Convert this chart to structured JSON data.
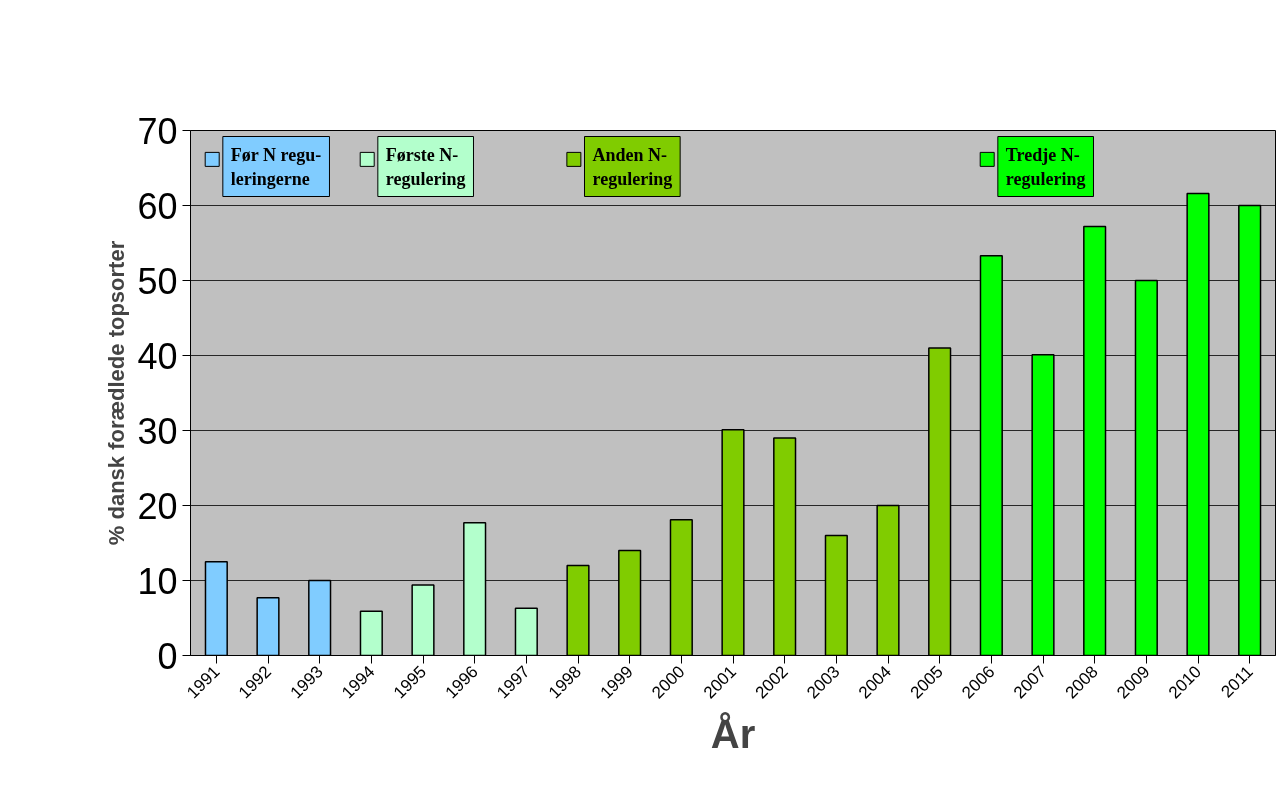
{
  "chart_data": {
    "type": "bar",
    "xlabel": "År",
    "ylabel": "% dansk forædlede topsorter",
    "categories": [
      "1991",
      "1992",
      "1993",
      "1994",
      "1995",
      "1996",
      "1997",
      "1998",
      "1999",
      "2000",
      "2001",
      "2002",
      "2003",
      "2004",
      "2005",
      "2006",
      "2007",
      "2008",
      "2009",
      "2010",
      "2011"
    ],
    "series": [
      {
        "name": "Før N regu-\nleringerne",
        "color": "#80ccff",
        "values": [
          12.5,
          7.7,
          10.0,
          null,
          null,
          null,
          null,
          null,
          null,
          null,
          null,
          null,
          null,
          null,
          null,
          null,
          null,
          null,
          null,
          null,
          null
        ]
      },
      {
        "name": "Første N-\nregulering",
        "color": "#b3ffcc",
        "values": [
          null,
          null,
          null,
          5.9,
          9.4,
          17.7,
          6.3,
          null,
          null,
          null,
          null,
          null,
          null,
          null,
          null,
          null,
          null,
          null,
          null,
          null,
          null
        ]
      },
      {
        "name": "Anden N-\nregulering",
        "color": "#80cc00",
        "values": [
          null,
          null,
          null,
          null,
          null,
          null,
          null,
          12.0,
          14.0,
          18.1,
          30.1,
          29.0,
          16.0,
          20.0,
          41.0,
          null,
          null,
          null,
          null,
          null,
          null
        ]
      },
      {
        "name": "Tredje N-\nregulering",
        "color": "#00ff00",
        "values": [
          null,
          null,
          null,
          null,
          null,
          null,
          null,
          null,
          null,
          null,
          null,
          null,
          null,
          null,
          null,
          53.3,
          40.1,
          57.2,
          50.0,
          61.6,
          60.0
        ]
      }
    ],
    "legend": "top",
    "ylim": [
      0,
      70
    ],
    "yticks": [
      0,
      10,
      20,
      30,
      40,
      50,
      60,
      70
    ],
    "grid": "y"
  }
}
